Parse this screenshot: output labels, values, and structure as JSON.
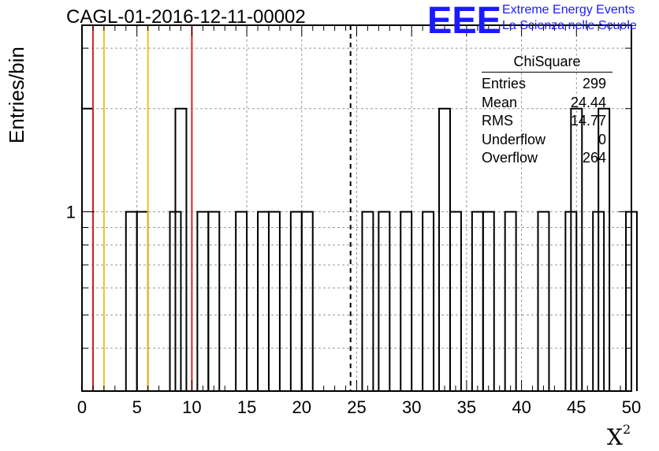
{
  "header": {
    "title": "CAGL-01-2016-12-11-00002"
  },
  "logo": {
    "mark": "EEE",
    "line1": "Extreme Energy Events",
    "line2": "La Scienza nelle Scuole",
    "color": "#1a1aff"
  },
  "stats_box": {
    "title": "ChiSquare",
    "rows": [
      {
        "label": "Entries",
        "value": "299"
      },
      {
        "label": "Mean",
        "value": "24.44"
      },
      {
        "label": "RMS",
        "value": "14.77"
      },
      {
        "label": "Underflow",
        "value": "0"
      },
      {
        "label": "Overflow",
        "value": "264"
      }
    ]
  },
  "chart_data": {
    "type": "bar",
    "title": "CAGL-01-2016-12-11-00002",
    "xlabel": "X²",
    "ylabel": "Entries/bin",
    "xlim": [
      0,
      50
    ],
    "yscale": "log",
    "ylim": [
      0.3,
      3.5
    ],
    "bin_width": 1,
    "x_ticks": [
      0,
      5,
      10,
      15,
      20,
      25,
      30,
      35,
      40,
      45,
      50
    ],
    "y_tick_labels": [
      1
    ],
    "grid": true,
    "bins": [
      {
        "x": 0,
        "value": 2
      },
      {
        "x": 4,
        "value": 1
      },
      {
        "x": 5,
        "value": 1
      },
      {
        "x": 8,
        "value": 1
      },
      {
        "x": 8.5,
        "value": 2
      },
      {
        "x": 10.5,
        "value": 1
      },
      {
        "x": 11.5,
        "value": 1
      },
      {
        "x": 14,
        "value": 1
      },
      {
        "x": 16,
        "value": 1
      },
      {
        "x": 17,
        "value": 1
      },
      {
        "x": 19,
        "value": 1
      },
      {
        "x": 20,
        "value": 1
      },
      {
        "x": 25.5,
        "value": 1
      },
      {
        "x": 27,
        "value": 1
      },
      {
        "x": 29,
        "value": 1
      },
      {
        "x": 31,
        "value": 1
      },
      {
        "x": 32.5,
        "value": 2
      },
      {
        "x": 33.5,
        "value": 1
      },
      {
        "x": 35.5,
        "value": 1
      },
      {
        "x": 36.5,
        "value": 1
      },
      {
        "x": 38.5,
        "value": 1
      },
      {
        "x": 41.5,
        "value": 1
      },
      {
        "x": 44,
        "value": 1
      },
      {
        "x": 44.5,
        "value": 2
      },
      {
        "x": 46.5,
        "value": 1
      },
      {
        "x": 47,
        "value": 2
      },
      {
        "x": 49.5,
        "value": 1
      }
    ],
    "vertical_lines": [
      {
        "x": 1,
        "color": "#dd2222",
        "style": "solid"
      },
      {
        "x": 2,
        "color": "#f0c020",
        "style": "solid"
      },
      {
        "x": 6,
        "color": "#f0c020",
        "style": "solid"
      },
      {
        "x": 10,
        "color": "#dd2222",
        "style": "solid"
      },
      {
        "x": 24.44,
        "color": "#000000",
        "style": "dashed"
      }
    ]
  }
}
